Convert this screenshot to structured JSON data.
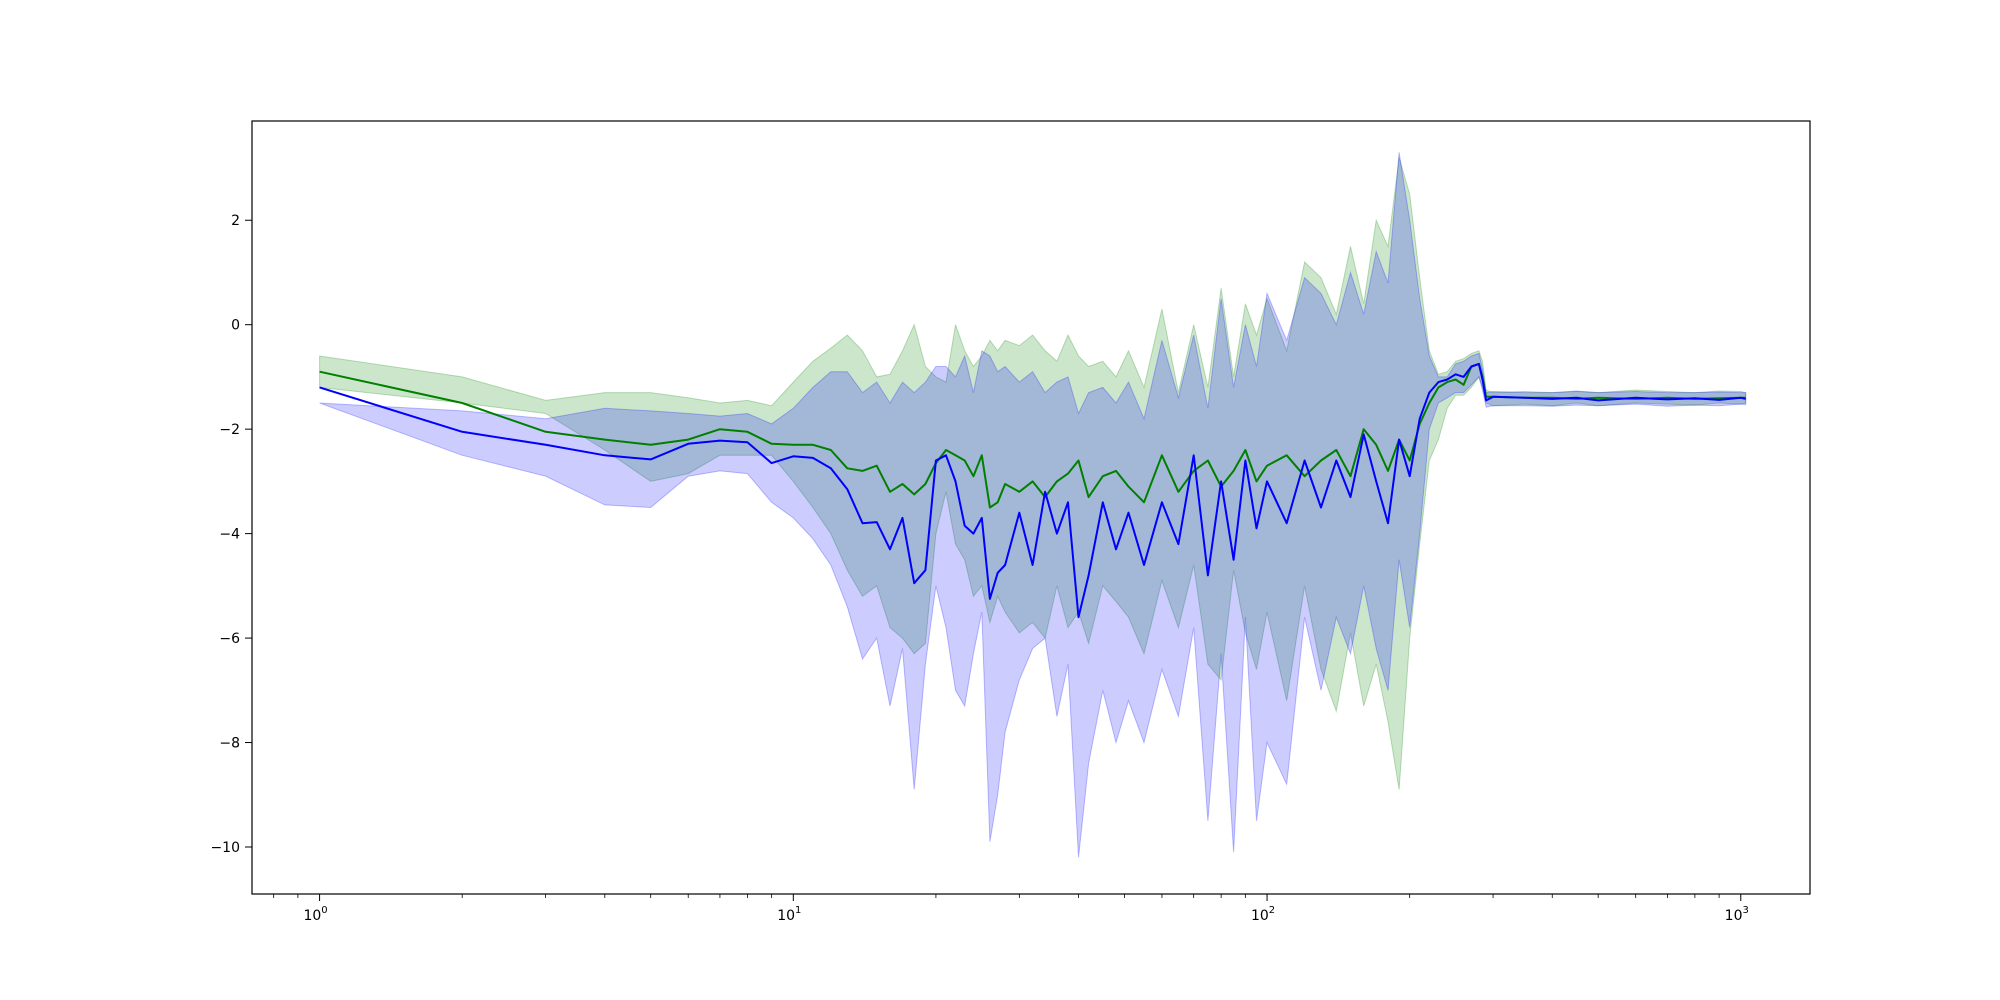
{
  "chart_data": {
    "type": "line",
    "title": "",
    "xlabel": "",
    "ylabel": "",
    "xscale": "log",
    "xlim": [
      0.72,
      1400
    ],
    "ylim": [
      -10.9,
      3.9
    ],
    "grid": false,
    "xticks": [
      {
        "value": 1,
        "base": "10",
        "exp": "0"
      },
      {
        "value": 10,
        "base": "10",
        "exp": "1"
      },
      {
        "value": 100,
        "base": "10",
        "exp": "2"
      },
      {
        "value": 1000,
        "base": "10",
        "exp": "3"
      }
    ],
    "yticks": [
      {
        "value": 2,
        "label": "2"
      },
      {
        "value": 0,
        "label": "0"
      },
      {
        "value": -2,
        "label": "−2"
      },
      {
        "value": -4,
        "label": "−4"
      },
      {
        "value": -6,
        "label": "−6"
      },
      {
        "value": -8,
        "label": "−8"
      },
      {
        "value": -10,
        "label": "−10"
      }
    ],
    "series": [
      {
        "color": "#008000",
        "band_color": "#008000",
        "band_opacity": 0.2,
        "x": [
          1,
          2,
          3,
          4,
          5,
          6,
          7,
          8,
          9,
          10,
          11,
          12,
          13,
          14,
          15,
          16,
          17,
          18,
          19,
          20,
          21,
          22,
          23,
          24,
          25,
          26,
          27,
          28,
          30,
          32,
          34,
          36,
          38,
          40,
          42,
          45,
          48,
          51,
          55,
          60,
          65,
          70,
          75,
          80,
          85,
          90,
          95,
          100,
          110,
          120,
          130,
          140,
          150,
          160,
          170,
          180,
          190,
          200,
          210,
          220,
          230,
          240,
          250,
          260,
          270,
          280,
          285,
          290,
          300,
          350,
          400,
          450,
          500,
          600,
          700,
          800,
          900,
          1000,
          1024
        ],
        "y": [
          -0.9,
          -1.5,
          -2.05,
          -2.2,
          -2.3,
          -2.2,
          -2.0,
          -2.05,
          -2.28,
          -2.3,
          -2.3,
          -2.4,
          -2.75,
          -2.8,
          -2.7,
          -3.2,
          -3.05,
          -3.25,
          -3.05,
          -2.65,
          -2.4,
          -2.5,
          -2.6,
          -2.9,
          -2.5,
          -3.5,
          -3.4,
          -3.05,
          -3.2,
          -3.0,
          -3.3,
          -3.0,
          -2.85,
          -2.6,
          -3.3,
          -2.9,
          -2.8,
          -3.1,
          -3.4,
          -2.5,
          -3.2,
          -2.8,
          -2.6,
          -3.1,
          -2.8,
          -2.4,
          -3.0,
          -2.7,
          -2.5,
          -2.9,
          -2.6,
          -2.4,
          -2.9,
          -2.0,
          -2.3,
          -2.8,
          -2.2,
          -2.6,
          -1.9,
          -1.5,
          -1.2,
          -1.1,
          -1.05,
          -1.15,
          -0.8,
          -0.75,
          -1.0,
          -1.38,
          -1.38,
          -1.4,
          -1.4,
          -1.42,
          -1.4,
          -1.42,
          -1.4,
          -1.42,
          -1.41,
          -1.4,
          -1.4
        ],
        "lower": [
          -1.2,
          -1.5,
          -1.7,
          -2.4,
          -3.0,
          -2.85,
          -2.5,
          -2.5,
          -2.5,
          -3.0,
          -3.5,
          -4.0,
          -4.7,
          -5.2,
          -5.0,
          -5.8,
          -6.0,
          -6.3,
          -6.1,
          -4.0,
          -3.2,
          -4.2,
          -4.5,
          -5.2,
          -5.0,
          -5.7,
          -5.2,
          -5.5,
          -5.9,
          -5.7,
          -6.0,
          -5.0,
          -5.8,
          -5.5,
          -6.1,
          -5.0,
          -5.3,
          -5.6,
          -6.3,
          -4.9,
          -5.8,
          -4.6,
          -6.5,
          -6.8,
          -4.7,
          -5.9,
          -6.6,
          -5.5,
          -7.2,
          -5.0,
          -6.6,
          -7.4,
          -5.9,
          -7.3,
          -6.5,
          -7.6,
          -8.9,
          -6.0,
          -4.2,
          -2.6,
          -2.2,
          -1.6,
          -1.35,
          -1.35,
          -1.2,
          -1.0,
          -1.2,
          -1.5,
          -1.55,
          -1.52,
          -1.55,
          -1.5,
          -1.55,
          -1.5,
          -1.52,
          -1.54,
          -1.5,
          -1.52,
          -1.5
        ],
        "upper": [
          -0.6,
          -1.0,
          -1.45,
          -1.3,
          -1.3,
          -1.4,
          -1.5,
          -1.45,
          -1.55,
          -1.1,
          -0.7,
          -0.45,
          -0.2,
          -0.5,
          -1.0,
          -0.95,
          -0.5,
          0.0,
          -0.8,
          -1.0,
          -1.1,
          0.0,
          -0.5,
          -0.8,
          -0.6,
          -0.3,
          -0.5,
          -0.3,
          -0.4,
          -0.2,
          -0.5,
          -0.7,
          -0.2,
          -0.6,
          -0.8,
          -0.7,
          -1.0,
          -0.5,
          -1.2,
          0.3,
          -1.3,
          0.0,
          -1.2,
          0.7,
          -1.0,
          0.4,
          -0.2,
          0.5,
          -0.5,
          1.2,
          0.9,
          0.2,
          1.5,
          0.4,
          2.0,
          1.5,
          3.2,
          2.5,
          0.9,
          -0.5,
          -0.95,
          -0.9,
          -0.7,
          -0.65,
          -0.55,
          -0.5,
          -0.7,
          -1.25,
          -1.3,
          -1.28,
          -1.3,
          -1.28,
          -1.3,
          -1.25,
          -1.28,
          -1.3,
          -1.27,
          -1.28,
          -1.3
        ]
      },
      {
        "color": "#0000ff",
        "band_color": "#0000ff",
        "band_opacity": 0.2,
        "x": [
          1,
          2,
          3,
          4,
          5,
          6,
          7,
          8,
          9,
          10,
          11,
          12,
          13,
          14,
          15,
          16,
          17,
          18,
          19,
          20,
          21,
          22,
          23,
          24,
          25,
          26,
          27,
          28,
          30,
          32,
          34,
          36,
          38,
          40,
          42,
          45,
          48,
          51,
          55,
          60,
          65,
          70,
          75,
          80,
          85,
          90,
          95,
          100,
          110,
          120,
          130,
          140,
          150,
          160,
          170,
          180,
          190,
          200,
          210,
          220,
          230,
          240,
          250,
          260,
          270,
          280,
          285,
          290,
          300,
          350,
          400,
          450,
          500,
          600,
          700,
          800,
          900,
          1000,
          1024
        ],
        "y": [
          -1.2,
          -2.05,
          -2.3,
          -2.5,
          -2.58,
          -2.28,
          -2.22,
          -2.25,
          -2.65,
          -2.52,
          -2.55,
          -2.75,
          -3.15,
          -3.8,
          -3.78,
          -4.3,
          -3.7,
          -4.95,
          -4.7,
          -2.6,
          -2.5,
          -3.0,
          -3.85,
          -4.0,
          -3.7,
          -5.25,
          -4.75,
          -4.6,
          -3.6,
          -4.6,
          -3.2,
          -4.0,
          -3.4,
          -5.6,
          -4.8,
          -3.4,
          -4.3,
          -3.6,
          -4.6,
          -3.4,
          -4.2,
          -2.5,
          -4.8,
          -3.0,
          -4.5,
          -2.6,
          -3.9,
          -3.0,
          -3.8,
          -2.6,
          -3.5,
          -2.6,
          -3.3,
          -2.1,
          -3.0,
          -3.8,
          -2.2,
          -2.9,
          -1.8,
          -1.3,
          -1.1,
          -1.05,
          -0.95,
          -1.0,
          -0.8,
          -0.75,
          -1.05,
          -1.45,
          -1.38,
          -1.4,
          -1.42,
          -1.4,
          -1.45,
          -1.4,
          -1.43,
          -1.41,
          -1.44,
          -1.4,
          -1.42
        ],
        "lower": [
          -1.5,
          -2.5,
          -2.9,
          -3.45,
          -3.5,
          -2.9,
          -2.8,
          -2.85,
          -3.4,
          -3.7,
          -4.1,
          -4.6,
          -5.4,
          -6.4,
          -6.0,
          -7.3,
          -6.2,
          -8.9,
          -6.5,
          -5.0,
          -5.8,
          -7.0,
          -7.3,
          -6.3,
          -5.5,
          -9.9,
          -9.0,
          -7.8,
          -6.8,
          -6.2,
          -6.0,
          -7.5,
          -6.5,
          -10.2,
          -8.4,
          -7.0,
          -8.0,
          -7.2,
          -8.0,
          -6.6,
          -7.5,
          -5.8,
          -9.5,
          -6.3,
          -10.1,
          -5.6,
          -9.5,
          -8.0,
          -8.8,
          -5.6,
          -7.0,
          -5.6,
          -6.3,
          -5.0,
          -6.2,
          -7.0,
          -4.5,
          -5.8,
          -4.0,
          -2.0,
          -1.5,
          -1.4,
          -1.3,
          -1.3,
          -1.15,
          -1.0,
          -1.25,
          -1.58,
          -1.55,
          -1.55,
          -1.56,
          -1.54,
          -1.55,
          -1.52,
          -1.56,
          -1.54,
          -1.55,
          -1.52,
          -1.53
        ],
        "upper": [
          -1.5,
          -1.65,
          -1.8,
          -1.6,
          -1.65,
          -1.7,
          -1.75,
          -1.7,
          -1.9,
          -1.6,
          -1.2,
          -0.9,
          -0.9,
          -1.3,
          -1.1,
          -1.5,
          -1.1,
          -1.3,
          -1.1,
          -0.8,
          -0.8,
          -1.0,
          -0.6,
          -1.3,
          -0.5,
          -0.6,
          -0.9,
          -0.8,
          -1.1,
          -0.9,
          -1.3,
          -1.1,
          -1.0,
          -1.7,
          -1.3,
          -1.2,
          -1.5,
          -1.1,
          -1.8,
          -0.3,
          -1.4,
          -0.2,
          -1.6,
          0.5,
          -1.2,
          0.0,
          -0.8,
          0.6,
          -0.3,
          0.9,
          0.6,
          0.0,
          1.0,
          0.2,
          1.4,
          0.8,
          3.3,
          2.0,
          0.5,
          -0.6,
          -1.0,
          -1.0,
          -0.75,
          -0.7,
          -0.6,
          -0.55,
          -0.85,
          -1.3,
          -1.28,
          -1.3,
          -1.3,
          -1.27,
          -1.3,
          -1.28,
          -1.3,
          -1.3,
          -1.29,
          -1.3,
          -1.3
        ]
      }
    ]
  }
}
